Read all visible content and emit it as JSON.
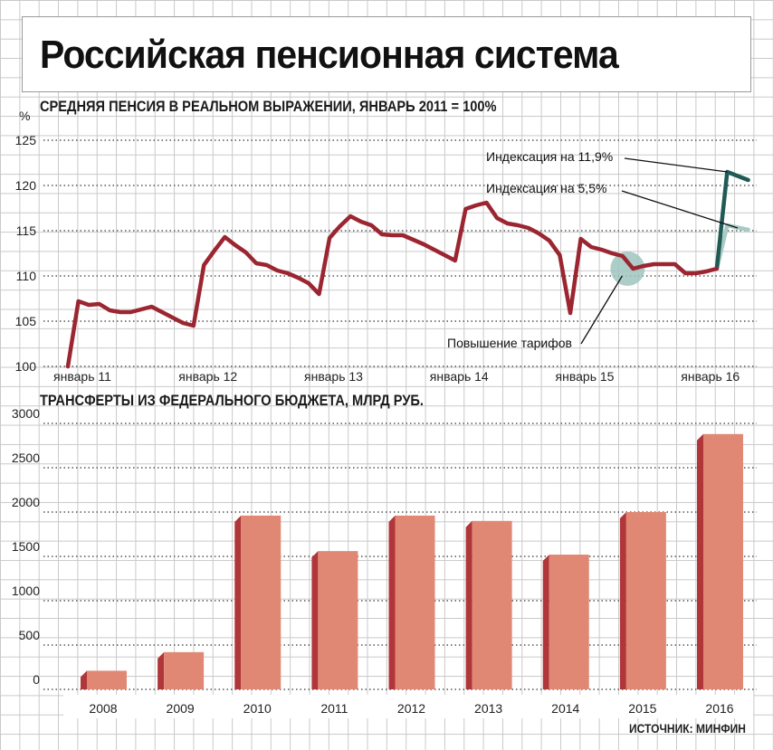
{
  "header": {
    "title": "Российская пенсионная система",
    "source": "ИСТОЧНИК: МИНФИН"
  },
  "colors": {
    "pension_line": "#9b2530",
    "index_high": "#1f5a55",
    "index_low": "#a8cbc6",
    "bar_face": "#e08873",
    "bar_side": "#b0363a",
    "highlight": "#9fc4bf"
  },
  "chart_data": [
    {
      "type": "line",
      "title": "СРЕДНЯЯ ПЕНСИЯ В РЕАЛЬНОМ ВЫРАЖЕНИИ, ЯНВАРЬ 2011 = 100%",
      "ylabel": "%",
      "ylim": [
        100,
        125
      ],
      "yticks": [
        100,
        105,
        110,
        115,
        120,
        125
      ],
      "xlim": [
        0,
        64
      ],
      "xtick_positions": [
        0,
        12,
        24,
        36,
        48,
        60
      ],
      "xtick_labels": [
        "январь 11",
        "январь 12",
        "январь 13",
        "январь 14",
        "январь 15",
        "январь 16"
      ],
      "grid": true,
      "series": [
        {
          "x": [
            0,
            1,
            2,
            3,
            4,
            5,
            6,
            7,
            8,
            9,
            10,
            11,
            12,
            13,
            14,
            15,
            16,
            17,
            18,
            19,
            20,
            21,
            22,
            23,
            24,
            25,
            26,
            27,
            28,
            29,
            30,
            31,
            32,
            33,
            34,
            35,
            36,
            37,
            38,
            39,
            40,
            41,
            42,
            43,
            44,
            45,
            46,
            47,
            48,
            49,
            50,
            51,
            52,
            53,
            54,
            55,
            56,
            57,
            58,
            59,
            60,
            61,
            62
          ],
          "y": [
            100,
            107.2,
            106.8,
            106.9,
            106.2,
            106.0,
            106.0,
            106.3,
            106.6,
            106.0,
            105.4,
            104.8,
            104.5,
            111.2,
            112.8,
            114.3,
            113.4,
            112.6,
            111.4,
            111.2,
            110.6,
            110.3,
            109.8,
            109.2,
            108.0,
            114.2,
            115.5,
            116.6,
            116.0,
            115.6,
            114.6,
            114.5,
            114.5,
            114.0,
            113.5,
            112.9,
            112.3,
            111.7,
            117.4,
            117.8,
            118.1,
            116.4,
            115.8,
            115.6,
            115.3,
            114.7,
            113.9,
            112.3,
            105.9,
            114.1,
            113.2,
            112.9,
            112.5,
            112.2,
            110.8,
            111.1,
            111.3,
            111.3,
            111.3,
            110.3,
            110.3,
            110.5,
            110.8
          ]
        },
        {
          "x": [
            62,
            63,
            65
          ],
          "y": [
            110.8,
            121.5,
            120.6
          ]
        },
        {
          "x": [
            62,
            63,
            65
          ],
          "y": [
            110.8,
            115.6,
            115.1
          ]
        }
      ],
      "annotations": [
        {
          "text": "Индексация на 11,9%",
          "x": 63,
          "y": 121.5
        },
        {
          "text": "Индексация на 5,5%",
          "x": 64,
          "y": 115.3
        },
        {
          "text": "Повышение тарифов",
          "x": 54,
          "y": 110.8
        }
      ]
    },
    {
      "type": "bar",
      "title": "ТРАНСФЕРТЫ ИЗ ФЕДЕРАЛЬНОГО БЮДЖЕТА, МЛРД РУБ.",
      "categories": [
        "2008",
        "2009",
        "2010",
        "2011",
        "2012",
        "2013",
        "2014",
        "2015",
        "2016"
      ],
      "values": [
        210,
        420,
        1960,
        1560,
        1960,
        1900,
        1520,
        2000,
        2880
      ],
      "ylim": [
        0,
        3000
      ],
      "yticks": [
        0,
        500,
        1000,
        1500,
        2000,
        2500,
        3000
      ],
      "grid": true
    }
  ]
}
